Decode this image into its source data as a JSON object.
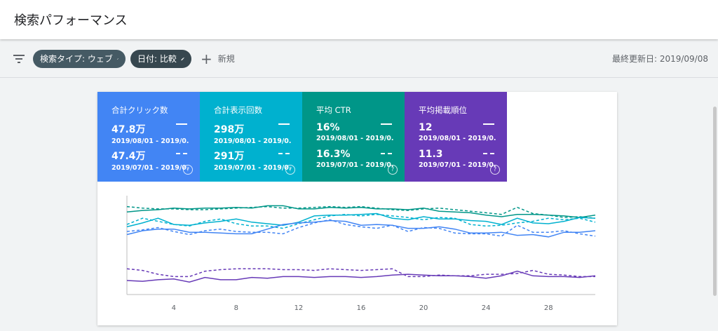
{
  "header": {
    "title": "検索パフォーマンス"
  },
  "toolbar": {
    "filter_icon": "filter-list-icon",
    "chips": [
      {
        "label": "検索タイプ: ウェブ",
        "icon": "pencil-icon"
      },
      {
        "label": "日付: 比較",
        "icon": "pencil-icon"
      }
    ],
    "new_label": "新規",
    "last_updated": "最終更新日: 2019/09/08"
  },
  "metrics": [
    {
      "label": "合計クリック数",
      "value1": "47.8万",
      "range1": "2019/08/01 - 2019/0...",
      "value2": "47.4万",
      "range2": "2019/07/01 - 2019/0...",
      "color": "#4285f4"
    },
    {
      "label": "合計表示回数",
      "value1": "298万",
      "range1": "2019/08/01 - 2019/0...",
      "value2": "291万",
      "range2": "2019/07/01 - 2019/0...",
      "color": "#00b1cf"
    },
    {
      "label": "平均 CTR",
      "value1": "16%",
      "range1": "2019/08/01 - 2019/0...",
      "value2": "16.3%",
      "range2": "2019/07/01 - 2019/0...",
      "color": "#009688"
    },
    {
      "label": "平均掲載順位",
      "value1": "12",
      "range1": "2019/08/01 - 2019/0...",
      "value2": "11.3",
      "range2": "2019/07/01 - 2019/0...",
      "color": "#673ab7"
    }
  ],
  "chart_data": {
    "type": "line",
    "x": [
      1,
      2,
      3,
      4,
      5,
      6,
      7,
      8,
      9,
      10,
      11,
      12,
      13,
      14,
      15,
      16,
      17,
      18,
      19,
      20,
      21,
      22,
      23,
      24,
      25,
      26,
      27,
      28,
      29,
      30,
      31
    ],
    "xticks": [
      4,
      8,
      12,
      16,
      20,
      24,
      28
    ],
    "ylim": [
      0,
      100
    ],
    "series": [
      {
        "color": "#009688",
        "dashed": false,
        "values": [
          88,
          90,
          91,
          93,
          92,
          93,
          93,
          94,
          93,
          96,
          96,
          92,
          92,
          94,
          93,
          94,
          92,
          92,
          91,
          93,
          89,
          88,
          87,
          84,
          82,
          85,
          85,
          84,
          83,
          81,
          84
        ]
      },
      {
        "color": "#009688",
        "dashed": true,
        "values": [
          95,
          93,
          92,
          92,
          91,
          91,
          92,
          93,
          94,
          95,
          93,
          93,
          94,
          95,
          94,
          95,
          93,
          91,
          90,
          92,
          93,
          91,
          89,
          87,
          85,
          94,
          86,
          84,
          81,
          82,
          80
        ]
      },
      {
        "color": "#00b1cf",
        "dashed": false,
        "values": [
          69,
          74,
          80,
          72,
          71,
          74,
          76,
          79,
          75,
          73,
          71,
          75,
          83,
          84,
          84,
          85,
          86,
          80,
          78,
          82,
          79,
          79,
          77,
          76,
          72,
          80,
          74,
          73,
          76,
          81,
          80
        ]
      },
      {
        "color": "#00b1cf",
        "dashed": true,
        "values": [
          72,
          80,
          76,
          72,
          70,
          76,
          79,
          73,
          70,
          70,
          67,
          73,
          78,
          83,
          85,
          83,
          85,
          83,
          81,
          78,
          81,
          80,
          72,
          70,
          71,
          74,
          76,
          80,
          78,
          80,
          75
        ]
      },
      {
        "color": "#4285f4",
        "dashed": false,
        "values": [
          59,
          64,
          66,
          66,
          62,
          62,
          61,
          60,
          60,
          66,
          72,
          74,
          75,
          77,
          76,
          71,
          72,
          71,
          67,
          67,
          69,
          66,
          61,
          61,
          62,
          58,
          59,
          56,
          62,
          62,
          64
        ]
      },
      {
        "color": "#4285f4",
        "dashed": true,
        "values": [
          63,
          65,
          68,
          63,
          59,
          64,
          66,
          63,
          62,
          62,
          60,
          68,
          74,
          78,
          72,
          69,
          67,
          71,
          63,
          68,
          67,
          61,
          60,
          60,
          57,
          71,
          62,
          62,
          64,
          60,
          57
        ]
      },
      {
        "color": "#673ab7",
        "dashed": true,
        "values": [
          15,
          13,
          8,
          5,
          5,
          12,
          14,
          15,
          15,
          15,
          14,
          14,
          13,
          15,
          14,
          13,
          14,
          15,
          5,
          5,
          7,
          6,
          6,
          8,
          8,
          9,
          13,
          8,
          7,
          5,
          5
        ]
      },
      {
        "color": "#673ab7",
        "dashed": false,
        "values": [
          0,
          -1,
          1,
          2,
          -2,
          4,
          1,
          1,
          4,
          3,
          5,
          5,
          4,
          5,
          5,
          4,
          5,
          7,
          8,
          7,
          6,
          6,
          5,
          3,
          6,
          12,
          6,
          5,
          5,
          4,
          6
        ]
      }
    ]
  }
}
